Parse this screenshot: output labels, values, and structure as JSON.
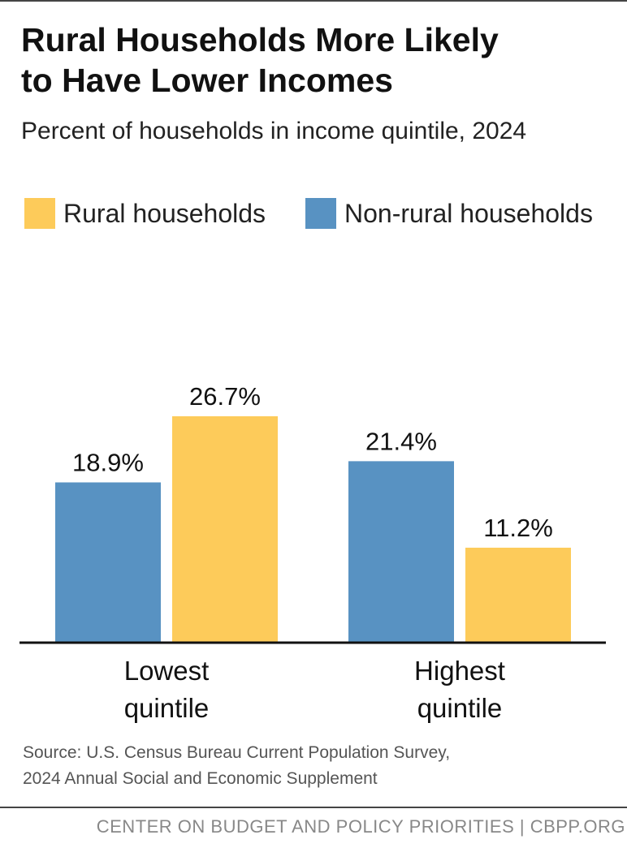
{
  "header": {
    "title_line1": "Rural Households More Likely",
    "title_line2": "to Have Lower Incomes",
    "subtitle": "Percent of households in income quintile, 2024"
  },
  "colors": {
    "rural": "#FDCB5A",
    "nonrural": "#5892C2",
    "axis": "#111111"
  },
  "chart_data": {
    "type": "bar",
    "title": "Rural Households More Likely to Have Lower Incomes",
    "subtitle": "Percent of households in income quintile, 2024",
    "categories": [
      "Lowest quintile",
      "Highest quintile"
    ],
    "category_lines": [
      [
        "Lowest",
        "quintile"
      ],
      [
        "Highest",
        "quintile"
      ]
    ],
    "series": [
      {
        "name": "Non-rural households",
        "color": "#5892C2",
        "values": [
          18.9,
          21.4
        ],
        "labels": [
          "18.9%",
          "21.4%"
        ]
      },
      {
        "name": "Rural households",
        "color": "#FDCB5A",
        "values": [
          26.7,
          11.2
        ],
        "labels": [
          "26.7%",
          "11.2%"
        ]
      }
    ],
    "legend": [
      {
        "name": "Rural households",
        "color": "#FDCB5A"
      },
      {
        "name": "Non-rural households",
        "color": "#5892C2"
      }
    ],
    "legend_position": "top-left",
    "ylim": [
      0,
      30
    ],
    "grid": false,
    "xlabel": "",
    "ylabel": ""
  },
  "source": {
    "line1": "Source: U.S. Census Bureau Current Population Survey,",
    "line2": "2024 Annual Social and Economic Supplement"
  },
  "footer": {
    "text": "CENTER ON BUDGET AND POLICY PRIORITIES | CBPP.ORG"
  }
}
